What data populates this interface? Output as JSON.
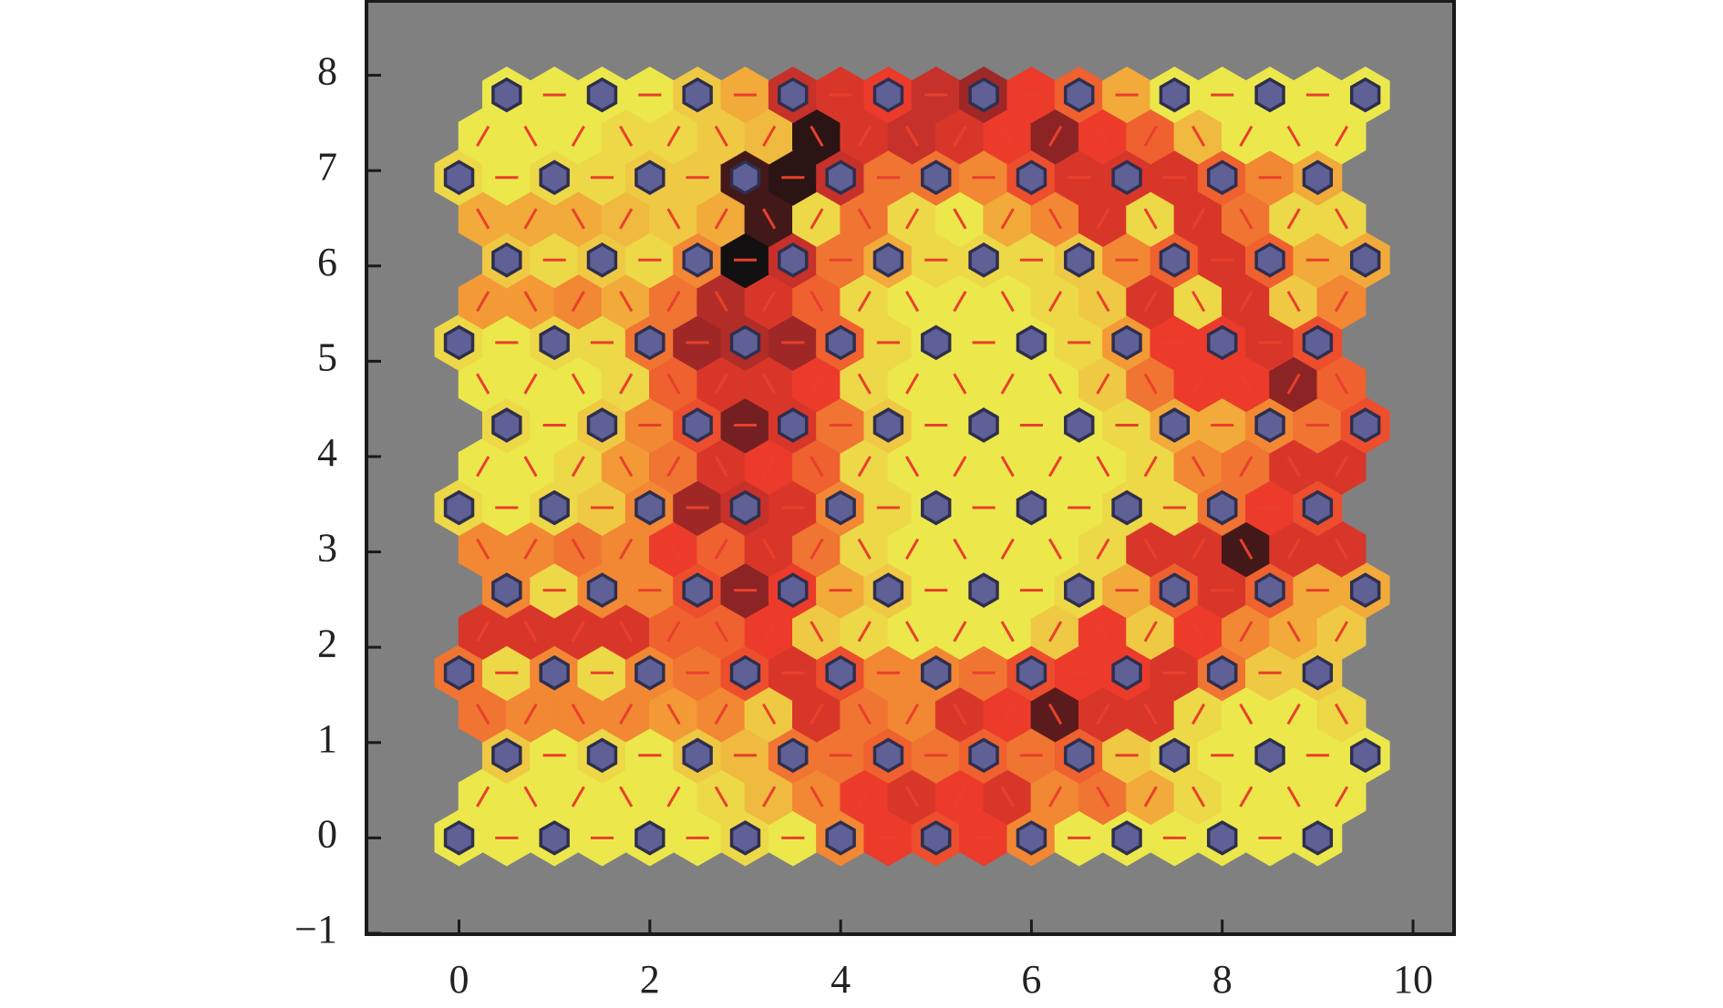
{
  "chart_data": {
    "type": "heatmap",
    "xlim": [
      -0.97,
      10.43
    ],
    "ylim": [
      -1.01,
      8.78
    ],
    "xticks": [
      0,
      2,
      4,
      6,
      8,
      10
    ],
    "yticks": [
      {
        "value": -1,
        "label": "−1"
      },
      0,
      1,
      2,
      3,
      4,
      5,
      6,
      7,
      8
    ],
    "background": "#808080",
    "node_color": "#5f6095",
    "line_color": "#e8402c",
    "colormap": [
      "#ece84c",
      "#f39a36",
      "#ec3b2b",
      "#8c2325",
      "#121010"
    ],
    "rows": [
      {
        "y": 0,
        "x": [
          0,
          0.5,
          1,
          1.5,
          2,
          2.5,
          3,
          3.5,
          4,
          4.5,
          5,
          5.5,
          6,
          6.5,
          7,
          7.5,
          8,
          8.5,
          9
        ],
        "values": [
          0,
          0,
          0,
          0,
          0,
          0,
          0.05,
          0,
          0.3,
          0.5,
          0.45,
          0.5,
          0.3,
          0,
          0,
          0,
          0,
          0,
          0
        ]
      },
      {
        "y": 0.433,
        "x": [
          0.25,
          0.75,
          1.25,
          1.75,
          2.25,
          2.75,
          3.25,
          3.75,
          4.25,
          4.75,
          5.25,
          5.75,
          6.25,
          6.75,
          7.25,
          7.75,
          8.25,
          8.75,
          9.25
        ],
        "values": [
          0,
          0,
          0,
          0,
          0,
          0.05,
          0.15,
          0.3,
          0.5,
          0.55,
          0.5,
          0.55,
          0.3,
          0.35,
          0.2,
          0.05,
          0,
          0,
          0
        ]
      },
      {
        "y": 0.866,
        "x": [
          0.5,
          1,
          1.5,
          2,
          2.5,
          3,
          3.5,
          4,
          4.5,
          5,
          5.5,
          6,
          6.5,
          7,
          7.5,
          8,
          8.5,
          9,
          9.5
        ],
        "values": [
          0.1,
          0,
          0.05,
          0,
          0.1,
          0.15,
          0.35,
          0.35,
          0.4,
          0.35,
          0.4,
          0.35,
          0.4,
          0.1,
          0.05,
          0,
          0,
          0,
          0
        ]
      },
      {
        "y": 1.299,
        "x": [
          0.25,
          0.75,
          1.25,
          1.75,
          2.25,
          2.75,
          3.25,
          3.75,
          4.25,
          4.75,
          5.25,
          5.75,
          6.25,
          6.75,
          7.25,
          7.75,
          8.25,
          8.75,
          9.25
        ],
        "values": [
          0.35,
          0.3,
          0.3,
          0.3,
          0.25,
          0.3,
          0.1,
          0.55,
          0.35,
          0.3,
          0.55,
          0.5,
          0.85,
          0.55,
          0.55,
          0.05,
          0,
          0,
          0.05
        ]
      },
      {
        "y": 1.732,
        "x": [
          0,
          0.5,
          1,
          1.5,
          2,
          2.5,
          3,
          3.5,
          4,
          4.5,
          5,
          5.5,
          6,
          6.5,
          7,
          7.5,
          8,
          8.5,
          9
        ],
        "values": [
          0.35,
          0.05,
          0.3,
          0.05,
          0.3,
          0.35,
          0.45,
          0.55,
          0.45,
          0.3,
          0.3,
          0.35,
          0.45,
          0.5,
          0.5,
          0.55,
          0.35,
          0.1,
          0.1
        ]
      },
      {
        "y": 2.165,
        "x": [
          0.25,
          0.75,
          1.25,
          1.75,
          2.25,
          2.75,
          3.25,
          3.75,
          4.25,
          4.75,
          5.25,
          5.75,
          6.25,
          6.75,
          7.25,
          7.75,
          8.25,
          8.75,
          9.25
        ],
        "values": [
          0.55,
          0.55,
          0.55,
          0.55,
          0.4,
          0.4,
          0.5,
          0.1,
          0.05,
          0,
          0,
          0,
          0.1,
          0.5,
          0.1,
          0.5,
          0.3,
          0.2,
          0.1
        ]
      },
      {
        "y": 2.598,
        "x": [
          0.5,
          1,
          1.5,
          2,
          2.5,
          3,
          3.5,
          4,
          4.5,
          5,
          5.5,
          6,
          6.5,
          7,
          7.5,
          8,
          8.5,
          9,
          9.5
        ],
        "values": [
          0.3,
          0.05,
          0.3,
          0.3,
          0.45,
          0.75,
          0.5,
          0.2,
          0.1,
          0,
          0,
          0,
          0.05,
          0.2,
          0.4,
          0.55,
          0.4,
          0.2,
          0.2
        ]
      },
      {
        "y": 3.031,
        "x": [
          0.25,
          0.75,
          1.25,
          1.75,
          2.25,
          2.75,
          3.25,
          3.75,
          4.25,
          4.75,
          5.25,
          5.75,
          6.25,
          6.75,
          7.25,
          7.75,
          8.25,
          8.75,
          9.25
        ],
        "values": [
          0.3,
          0.3,
          0.35,
          0.3,
          0.5,
          0.4,
          0.55,
          0.35,
          0.05,
          0,
          0,
          0,
          0,
          0.05,
          0.55,
          0.55,
          0.9,
          0.55,
          0.55
        ]
      },
      {
        "y": 3.464,
        "x": [
          0,
          0.5,
          1,
          1.5,
          2,
          2.5,
          3,
          3.5,
          4,
          4.5,
          5,
          5.5,
          6,
          6.5,
          7,
          7.5,
          8,
          8.5,
          9
        ],
        "values": [
          0.05,
          0,
          0.05,
          0.1,
          0.3,
          0.7,
          0.6,
          0.55,
          0.3,
          0.05,
          0,
          0,
          0,
          0,
          0.05,
          0.05,
          0.35,
          0.5,
          0.45
        ]
      },
      {
        "y": 3.897,
        "x": [
          0.25,
          0.75,
          1.25,
          1.75,
          2.25,
          2.75,
          3.25,
          3.75,
          4.25,
          4.75,
          5.25,
          5.75,
          6.25,
          6.75,
          7.25,
          7.75,
          8.25,
          8.75,
          9.25
        ],
        "values": [
          0,
          0,
          0.05,
          0.25,
          0.35,
          0.55,
          0.5,
          0.4,
          0.05,
          0,
          0,
          0,
          0,
          0,
          0.05,
          0.3,
          0.35,
          0.55,
          0.55
        ]
      },
      {
        "y": 4.33,
        "x": [
          0.5,
          1,
          1.5,
          2,
          2.5,
          3,
          3.5,
          4,
          4.5,
          5,
          5.5,
          6,
          6.5,
          7,
          7.5,
          8,
          8.5,
          9,
          9.5
        ],
        "values": [
          0.05,
          0,
          0.1,
          0.3,
          0.45,
          0.8,
          0.55,
          0.35,
          0.1,
          0,
          0,
          0,
          0,
          0.05,
          0.2,
          0.2,
          0.3,
          0.35,
          0.45
        ]
      },
      {
        "y": 4.763,
        "x": [
          0.25,
          0.75,
          1.25,
          1.75,
          2.25,
          2.75,
          3.25,
          3.75,
          4.25,
          4.75,
          5.25,
          5.75,
          6.25,
          6.75,
          7.25,
          7.75,
          8.25,
          8.75,
          9.25
        ],
        "values": [
          0,
          0,
          0,
          0.05,
          0.4,
          0.55,
          0.55,
          0.5,
          0.05,
          0,
          0,
          0,
          0,
          0.1,
          0.35,
          0.5,
          0.5,
          0.75,
          0.4
        ]
      },
      {
        "y": 5.196,
        "x": [
          0,
          0.5,
          1,
          1.5,
          2,
          2.5,
          3,
          3.5,
          4,
          4.5,
          5,
          5.5,
          6,
          6.5,
          7,
          7.5,
          8,
          8.5,
          9
        ],
        "values": [
          0.05,
          0,
          0.05,
          0.05,
          0.35,
          0.7,
          0.65,
          0.7,
          0.4,
          0.05,
          0,
          0,
          0,
          0.05,
          0.25,
          0.5,
          0.5,
          0.55,
          0.45
        ]
      },
      {
        "y": 5.629,
        "x": [
          0.25,
          0.75,
          1.25,
          1.75,
          2.25,
          2.75,
          3.25,
          3.75,
          4.25,
          4.75,
          5.25,
          5.75,
          6.25,
          6.75,
          7.25,
          7.75,
          8.25,
          8.75,
          9.25
        ],
        "values": [
          0.25,
          0.25,
          0.3,
          0.2,
          0.35,
          0.65,
          0.55,
          0.4,
          0.05,
          0,
          0,
          0,
          0.05,
          0.1,
          0.55,
          0.05,
          0.55,
          0.1,
          0.3
        ]
      },
      {
        "y": 6.062,
        "x": [
          0.5,
          1,
          1.5,
          2,
          2.5,
          3,
          3.5,
          4,
          4.5,
          5,
          5.5,
          6,
          6.5,
          7,
          7.5,
          8,
          8.5,
          9,
          9.5
        ],
        "values": [
          0.1,
          0.05,
          0.1,
          0.05,
          0.3,
          1.0,
          0.6,
          0.35,
          0.2,
          0.05,
          0.05,
          0.05,
          0.1,
          0.3,
          0.4,
          0.55,
          0.4,
          0.2,
          0.2
        ]
      },
      {
        "y": 6.495,
        "x": [
          0.25,
          0.75,
          1.25,
          1.75,
          2.25,
          2.75,
          3.25,
          3.75,
          4.25,
          4.75,
          5.25,
          5.75,
          6.25,
          6.75,
          7.25,
          7.75,
          8.25,
          8.75,
          9.25
        ],
        "values": [
          0.2,
          0.2,
          0.2,
          0.15,
          0.1,
          0.2,
          0.9,
          0.05,
          0.35,
          0.05,
          0,
          0.2,
          0.3,
          0.55,
          0.05,
          0.55,
          0.35,
          0.05,
          0.05
        ]
      },
      {
        "y": 6.928,
        "x": [
          0,
          0.5,
          1,
          1.5,
          2,
          2.5,
          3,
          3.5,
          4,
          4.5,
          5,
          5.5,
          6,
          6.5,
          7,
          7.5,
          8,
          8.5,
          9
        ],
        "values": [
          0.05,
          0,
          0.05,
          0.05,
          0.1,
          0.1,
          0.9,
          0.95,
          0.6,
          0.35,
          0.35,
          0.3,
          0.45,
          0.55,
          0.55,
          0.55,
          0.4,
          0.3,
          0.2
        ]
      },
      {
        "y": 7.361,
        "x": [
          0.25,
          0.75,
          1.25,
          1.75,
          2.25,
          2.75,
          3.25,
          3.75,
          4.25,
          4.75,
          5.25,
          5.75,
          6.25,
          6.75,
          7.25,
          7.75,
          8.25,
          8.75,
          9.25
        ],
        "values": [
          0,
          0,
          0,
          0.05,
          0.05,
          0.1,
          0.15,
          0.95,
          0.55,
          0.6,
          0.55,
          0.5,
          0.75,
          0.5,
          0.4,
          0.15,
          0,
          0,
          0
        ]
      },
      {
        "y": 7.794,
        "x": [
          0.5,
          1,
          1.5,
          2,
          2.5,
          3,
          3.5,
          4,
          4.5,
          5,
          5.5,
          6,
          6.5,
          7,
          7.5,
          8,
          8.5,
          9,
          9.5
        ],
        "values": [
          0,
          0,
          0,
          0,
          0.1,
          0.2,
          0.6,
          0.55,
          0.5,
          0.6,
          0.7,
          0.5,
          0.4,
          0.2,
          0,
          0,
          0,
          0,
          0
        ]
      }
    ]
  }
}
